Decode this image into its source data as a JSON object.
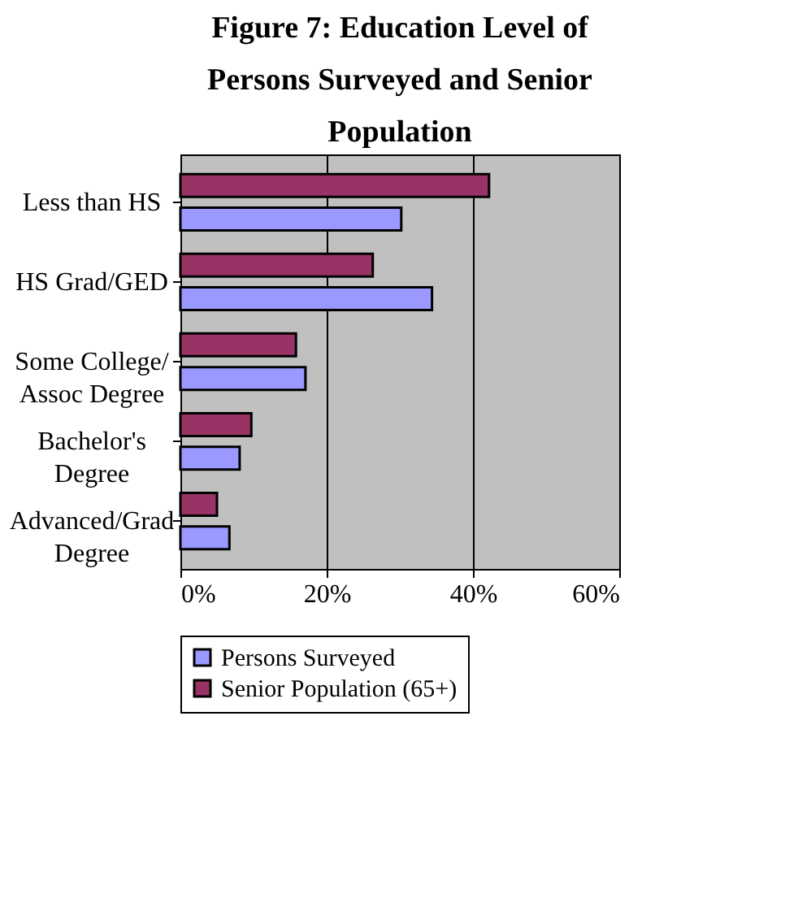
{
  "chart_data": {
    "type": "bar",
    "orientation": "horizontal",
    "title": "Figure 7: Education Level of Persons Surveyed and Senior Population",
    "categories": [
      "Less than HS",
      "HS Grad/GED",
      "Some College/ Assoc Degree",
      "Bachelor's Degree",
      "Advanced/Grad Degree"
    ],
    "series": [
      {
        "name": "Persons Surveyed",
        "color": "#9999ff",
        "values": [
          30.2,
          34.4,
          17.1,
          8.1,
          6.7
        ]
      },
      {
        "name": "Senior Population (65+)",
        "color": "#993366",
        "values": [
          42.2,
          26.3,
          15.8,
          9.7,
          5.0
        ]
      }
    ],
    "xlim": [
      0,
      60
    ],
    "xticks": [
      {
        "value": 0,
        "label": "0%"
      },
      {
        "value": 20,
        "label": "20%"
      },
      {
        "value": 40,
        "label": "40%"
      },
      {
        "value": 60,
        "label": "60%"
      }
    ],
    "grid": "x",
    "legend": "bottom"
  }
}
